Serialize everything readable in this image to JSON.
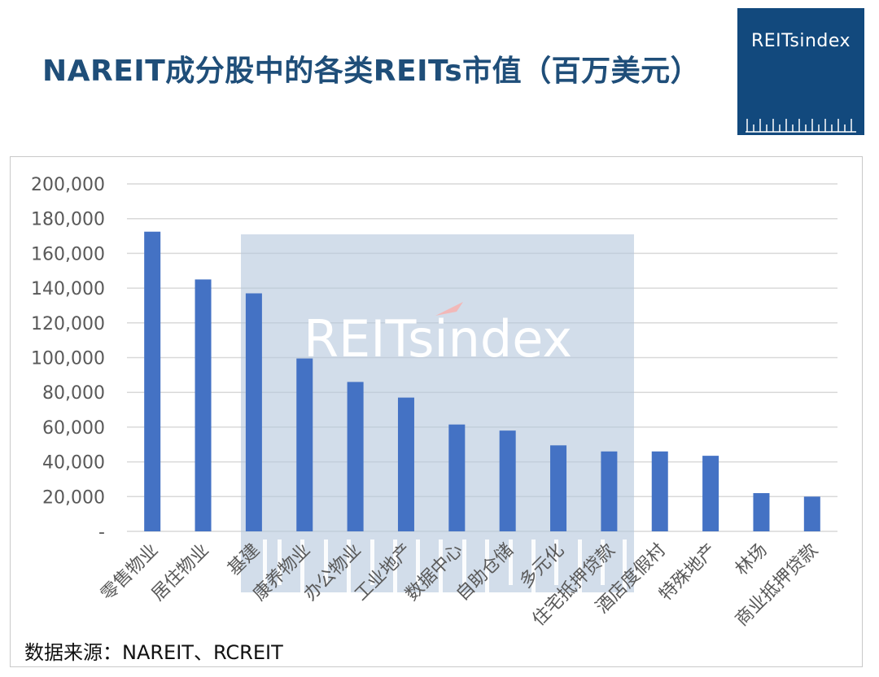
{
  "header": {
    "title": "NAREIT成分股中的各类REITs市值（百万美元）",
    "logo_text": "REITsindex"
  },
  "watermark": {
    "text": "REITsindex"
  },
  "source": "数据来源：NAREIT、RCREIT",
  "colors": {
    "title": "#1f4e79",
    "bar": "#4472c4",
    "logo_bg": "#12497d",
    "grid": "#d9d9d9",
    "watermark_bg": "#b4c7dc"
  },
  "chart_data": {
    "type": "bar",
    "categories": [
      "零售物业",
      "居住物业",
      "基建",
      "康养物业",
      "办公物业",
      "工业地产",
      "数据中心",
      "自助仓储",
      "多元化",
      "住宅抵押贷款",
      "酒店度假村",
      "特殊地产",
      "林场",
      "商业抵押贷款"
    ],
    "values": [
      172500,
      145000,
      137000,
      99500,
      86000,
      77000,
      61500,
      58000,
      49500,
      46000,
      46000,
      43500,
      22000,
      20000
    ],
    "yticks": [
      "-",
      "20,000",
      "40,000",
      "60,000",
      "80,000",
      "100,000",
      "120,000",
      "140,000",
      "160,000",
      "180,000",
      "200,000"
    ],
    "ylim": [
      0,
      200000
    ],
    "grid": true,
    "legend": "none"
  }
}
